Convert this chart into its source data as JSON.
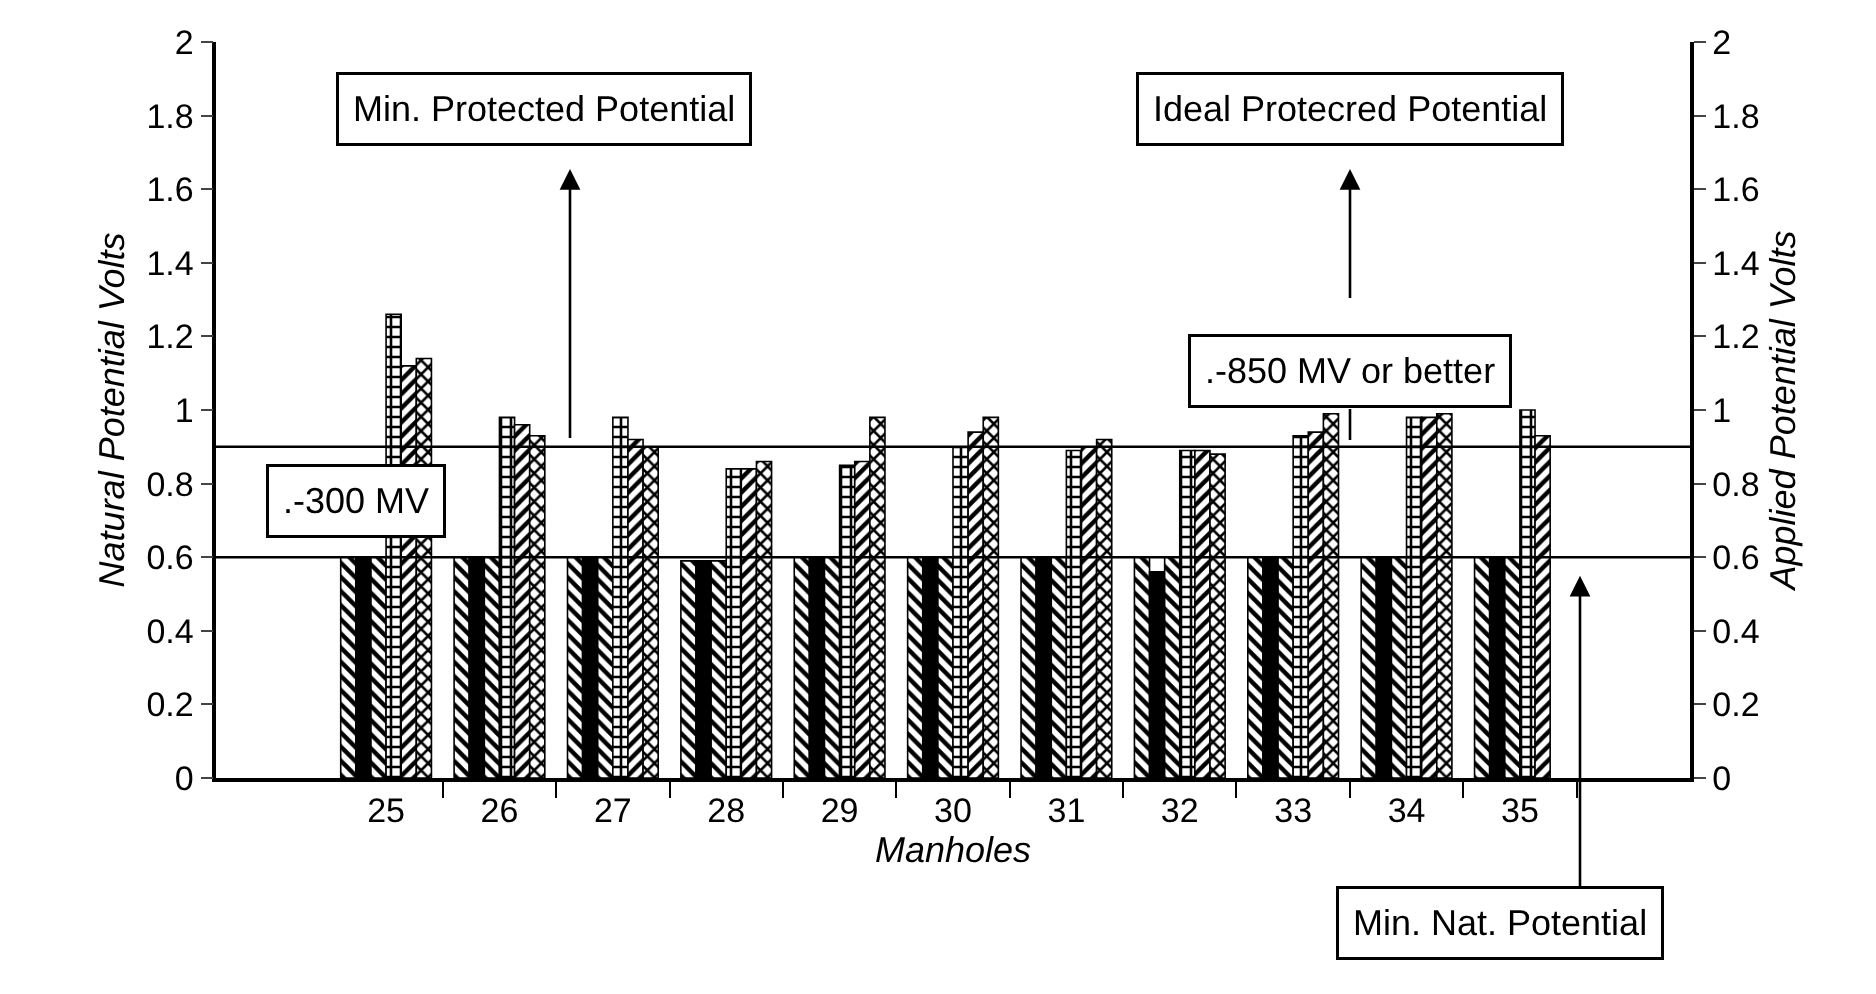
{
  "chart_data": {
    "type": "bar",
    "xlabel": "Manholes",
    "ylabel": "Natural Potential Volts",
    "y2label": "Applied Potential Volts",
    "categories": [
      null,
      "25",
      "26",
      "27",
      "28",
      "29",
      "30",
      "31",
      "32",
      "33",
      "34",
      "35",
      null
    ],
    "series": [
      {
        "color": "#000000",
        "values": [
          null,
          0.6,
          0.6,
          0.6,
          0.59,
          0.6,
          0.6,
          0.6,
          0.6,
          0.6,
          0.6,
          0.6,
          null
        ]
      },
      {
        "color": "#000000",
        "values": [
          null,
          0.6,
          0.6,
          0.6,
          0.59,
          0.6,
          0.6,
          0.6,
          0.56,
          0.6,
          0.6,
          0.6,
          null
        ]
      },
      {
        "color": "#000000",
        "values": [
          null,
          0.6,
          0.6,
          0.6,
          0.59,
          0.6,
          0.6,
          0.6,
          0.6,
          0.6,
          0.6,
          0.6,
          null
        ]
      },
      {
        "color": "#000000",
        "axis": "y2",
        "values": [
          null,
          1.26,
          0.98,
          0.98,
          0.84,
          0.85,
          0.9,
          0.89,
          0.89,
          0.93,
          0.98,
          1.0,
          null
        ]
      },
      {
        "color": "#000000",
        "axis": "y2",
        "values": [
          null,
          1.12,
          0.96,
          0.92,
          0.84,
          0.86,
          0.94,
          0.9,
          0.89,
          0.94,
          0.98,
          0.93,
          null
        ]
      },
      {
        "color": "#000000",
        "axis": "y2",
        "values": [
          null,
          1.14,
          0.93,
          0.9,
          0.86,
          0.98,
          0.98,
          0.92,
          0.88,
          0.99,
          0.99,
          null,
          null
        ]
      }
    ],
    "ylim": [
      0,
      2
    ],
    "yticks": [
      0,
      0.2,
      0.4,
      0.6,
      0.8,
      1,
      1.2,
      1.4,
      1.6,
      1.8,
      2
    ],
    "y2lim": [
      0,
      2
    ],
    "y2ticks": [
      0,
      0.2,
      0.4,
      0.6,
      0.8,
      1,
      1.2,
      1.4,
      1.6,
      1.8,
      2
    ],
    "ref_lines": [
      {
        "axis": "y",
        "value": 0.6,
        "color": "#000000"
      },
      {
        "axis": "y",
        "value": 0.9,
        "color": "#000000"
      }
    ],
    "annotations": [
      "Min. Protected Potential",
      "Ideal Protecred Potential",
      ".-850 MV or better",
      ".-300 MV",
      "Min. Nat. Potential"
    ],
    "line_style": "solid"
  }
}
